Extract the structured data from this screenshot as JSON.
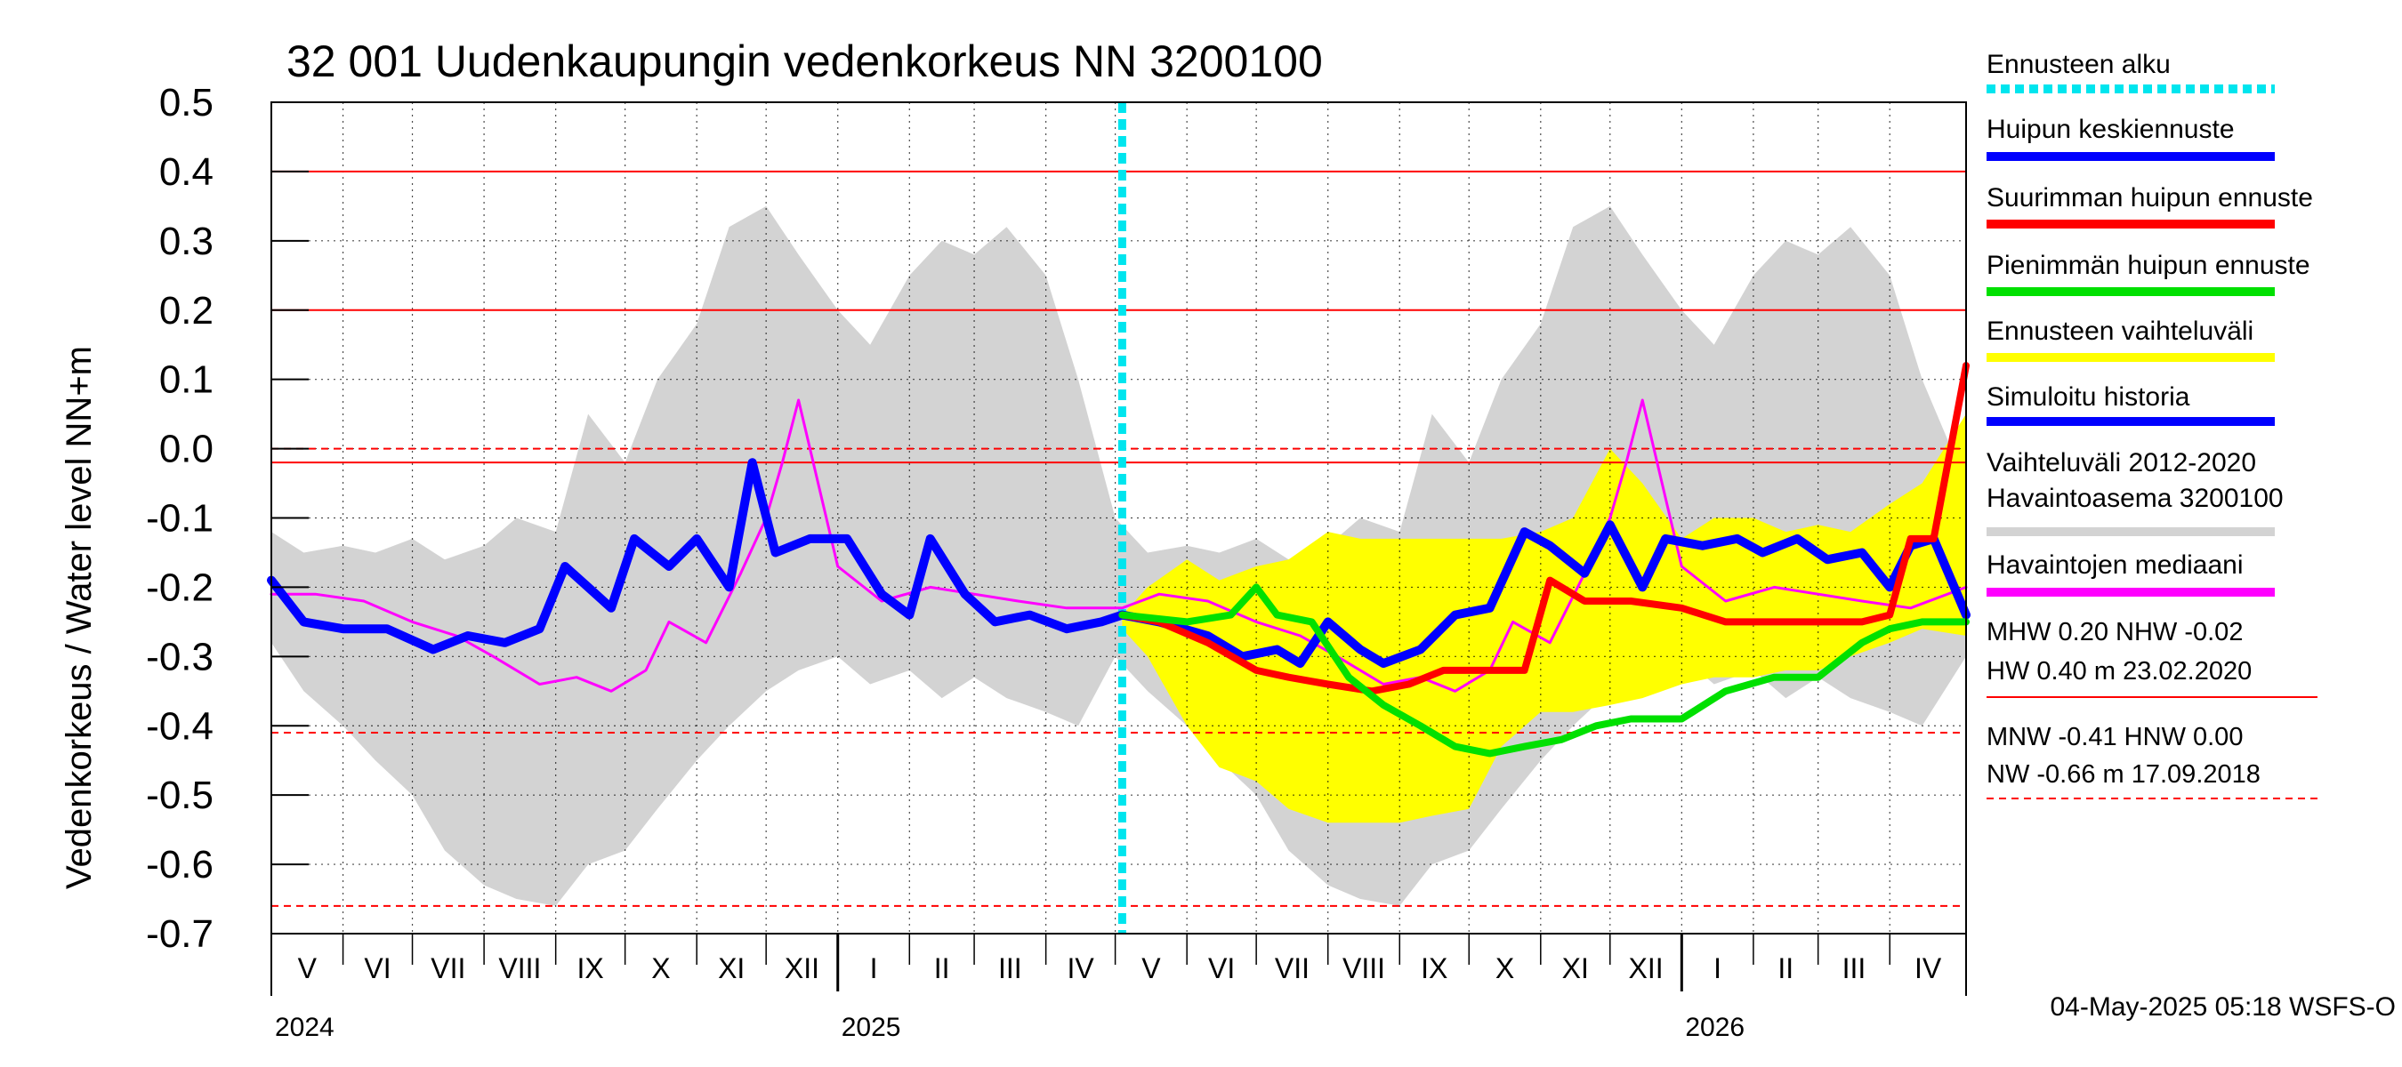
{
  "chart_data": {
    "type": "line",
    "title": "32 001 Uudenkaupungin vedenkorkeus NN 3200100",
    "ylabel": "Vedenkorkeus / Water level   NN+m",
    "ylim": [
      -0.7,
      0.5
    ],
    "y_ticks": [
      "0.5",
      "0.4",
      "0.3",
      "0.2",
      "0.1",
      "0.0",
      "-0.1",
      "-0.2",
      "-0.3",
      "-0.4",
      "-0.5",
      "-0.6",
      "-0.7"
    ],
    "x_range": [
      "2024-05-01",
      "2026-05-04"
    ],
    "forecast_start": "2025-05-04",
    "months": [
      {
        "label": "V",
        "start": "2024-05-01"
      },
      {
        "label": "VI",
        "start": "2024-06-01"
      },
      {
        "label": "VII",
        "start": "2024-07-01"
      },
      {
        "label": "VIII",
        "start": "2024-08-01"
      },
      {
        "label": "IX",
        "start": "2024-09-01"
      },
      {
        "label": "X",
        "start": "2024-10-01"
      },
      {
        "label": "XI",
        "start": "2024-11-01"
      },
      {
        "label": "XII",
        "start": "2024-12-01"
      },
      {
        "label": "I",
        "start": "2025-01-01"
      },
      {
        "label": "II",
        "start": "2025-02-01"
      },
      {
        "label": "III",
        "start": "2025-03-01"
      },
      {
        "label": "IV",
        "start": "2025-04-01"
      },
      {
        "label": "V",
        "start": "2025-05-01"
      },
      {
        "label": "VI",
        "start": "2025-06-01"
      },
      {
        "label": "VII",
        "start": "2025-07-01"
      },
      {
        "label": "VIII",
        "start": "2025-08-01"
      },
      {
        "label": "IX",
        "start": "2025-09-01"
      },
      {
        "label": "X",
        "start": "2025-10-01"
      },
      {
        "label": "XI",
        "start": "2025-11-01"
      },
      {
        "label": "XII",
        "start": "2025-12-01"
      },
      {
        "label": "I",
        "start": "2026-01-01"
      },
      {
        "label": "II",
        "start": "2026-02-01"
      },
      {
        "label": "III",
        "start": "2026-03-01"
      },
      {
        "label": "IV",
        "start": "2026-04-01"
      }
    ],
    "years": [
      {
        "label": "2024",
        "date": "2024-05-01"
      },
      {
        "label": "2025",
        "date": "2025-01-01"
      },
      {
        "label": "2026",
        "date": "2026-01-01"
      }
    ],
    "reference_lines": [
      {
        "y": 0.4,
        "style": "solid",
        "color": "#ff0000"
      },
      {
        "y": 0.2,
        "style": "solid",
        "color": "#ff0000"
      },
      {
        "y": 0.0,
        "style": "dashed",
        "color": "#ff0000"
      },
      {
        "y": -0.02,
        "style": "solid",
        "color": "#ff0000"
      },
      {
        "y": -0.41,
        "style": "dashed",
        "color": "#ff0000"
      },
      {
        "y": -0.66,
        "style": "dashed",
        "color": "#ff0000"
      }
    ],
    "legend": [
      {
        "label": "Ennusteen alku",
        "color": "#00e5ee",
        "style": "dotted"
      },
      {
        "label": "Huipun keskiennuste",
        "color": "#0000ff",
        "style": "solid"
      },
      {
        "label": "Suurimman huipun ennuste",
        "color": "#ff0000",
        "style": "solid"
      },
      {
        "label": "Pienimmän huipun ennuste",
        "color": "#00e000",
        "style": "solid"
      },
      {
        "label": "Ennusteen vaihteluväli",
        "color": "#ffff00",
        "style": "solid"
      },
      {
        "label": "Simuloitu historia",
        "color": "#0000ff",
        "style": "solid"
      },
      {
        "label": "Vaihteluväli 2012-2020\n Havaintoasema 3200100",
        "color": "#d3d3d3",
        "style": "solid"
      },
      {
        "label": "Havaintojen mediaani",
        "color": "#ff00ff",
        "style": "solid"
      }
    ],
    "stats": {
      "line1": "MHW   0.20 NHW  -0.02",
      "line2": "HW   0.40 m 23.02.2020",
      "line3": "MNW  -0.41 HNW   0.00",
      "line4": "NW  -0.66 m 17.09.2018"
    },
    "footer": "04-May-2025 05:18 WSFS-O",
    "series": [
      {
        "role": "historical_range",
        "color": "#d3d3d3",
        "x": [
          "2024-05-01",
          "2024-05-15",
          "2024-06-01",
          "2024-06-15",
          "2024-07-01",
          "2024-07-15",
          "2024-08-01",
          "2024-08-15",
          "2024-09-01",
          "2024-09-15",
          "2024-10-01",
          "2024-10-15",
          "2024-11-01",
          "2024-11-15",
          "2024-12-01",
          "2024-12-15",
          "2025-01-01",
          "2025-01-15",
          "2025-02-01",
          "2025-02-15",
          "2025-03-01",
          "2025-03-15",
          "2025-04-01",
          "2025-04-15",
          "2025-05-01",
          "2025-05-15",
          "2025-06-01",
          "2025-06-15",
          "2025-07-01",
          "2025-07-15",
          "2025-08-01",
          "2025-08-15",
          "2025-09-01",
          "2025-09-15",
          "2025-10-01",
          "2025-10-15",
          "2025-11-01",
          "2025-11-15",
          "2025-12-01",
          "2025-12-15",
          "2026-01-01",
          "2026-01-15",
          "2026-02-01",
          "2026-02-15",
          "2026-03-01",
          "2026-03-15",
          "2026-04-01",
          "2026-04-15",
          "2026-05-04"
        ],
        "upper": [
          -0.12,
          -0.15,
          -0.14,
          -0.15,
          -0.13,
          -0.16,
          -0.14,
          -0.1,
          -0.12,
          0.05,
          -0.02,
          0.1,
          0.18,
          0.32,
          0.35,
          0.28,
          0.2,
          0.15,
          0.25,
          0.3,
          0.28,
          0.32,
          0.25,
          0.1,
          -0.1,
          -0.15,
          -0.14,
          -0.15,
          -0.13,
          -0.16,
          -0.14,
          -0.1,
          -0.12,
          0.05,
          -0.02,
          0.1,
          0.18,
          0.32,
          0.35,
          0.28,
          0.2,
          0.15,
          0.25,
          0.3,
          0.28,
          0.32,
          0.25,
          0.1,
          -0.05
        ],
        "lower": [
          -0.28,
          -0.35,
          -0.4,
          -0.45,
          -0.5,
          -0.58,
          -0.63,
          -0.65,
          -0.66,
          -0.6,
          -0.58,
          -0.52,
          -0.45,
          -0.4,
          -0.35,
          -0.32,
          -0.3,
          -0.34,
          -0.32,
          -0.36,
          -0.33,
          -0.36,
          -0.38,
          -0.4,
          -0.3,
          -0.35,
          -0.4,
          -0.45,
          -0.5,
          -0.58,
          -0.63,
          -0.65,
          -0.66,
          -0.6,
          -0.58,
          -0.52,
          -0.45,
          -0.4,
          -0.35,
          -0.32,
          -0.3,
          -0.34,
          -0.32,
          -0.36,
          -0.33,
          -0.36,
          -0.38,
          -0.4,
          -0.3
        ]
      },
      {
        "role": "forecast_range",
        "color": "#ffff00",
        "x": [
          "2025-05-04",
          "2025-05-15",
          "2025-06-01",
          "2025-06-15",
          "2025-07-01",
          "2025-07-15",
          "2025-08-01",
          "2025-08-15",
          "2025-09-01",
          "2025-09-15",
          "2025-10-01",
          "2025-10-15",
          "2025-11-01",
          "2025-11-15",
          "2025-12-01",
          "2025-12-15",
          "2026-01-01",
          "2026-01-15",
          "2026-02-01",
          "2026-02-15",
          "2026-03-01",
          "2026-03-15",
          "2026-04-01",
          "2026-04-15",
          "2026-05-04"
        ],
        "upper": [
          -0.24,
          -0.2,
          -0.16,
          -0.19,
          -0.17,
          -0.16,
          -0.12,
          -0.13,
          -0.13,
          -0.13,
          -0.13,
          -0.13,
          -0.12,
          -0.1,
          0.0,
          -0.05,
          -0.13,
          -0.1,
          -0.1,
          -0.12,
          -0.11,
          -0.12,
          -0.08,
          -0.05,
          0.05
        ],
        "lower": [
          -0.26,
          -0.3,
          -0.4,
          -0.46,
          -0.48,
          -0.52,
          -0.54,
          -0.54,
          -0.54,
          -0.53,
          -0.52,
          -0.43,
          -0.38,
          -0.38,
          -0.37,
          -0.36,
          -0.34,
          -0.33,
          -0.33,
          -0.32,
          -0.32,
          -0.3,
          -0.28,
          -0.26,
          -0.27
        ]
      },
      {
        "name": "Havaintojen mediaani",
        "color": "#ff00ff",
        "width": 3,
        "x": [
          "2024-05-01",
          "2024-05-20",
          "2024-06-10",
          "2024-07-01",
          "2024-07-20",
          "2024-08-05",
          "2024-08-25",
          "2024-09-10",
          "2024-09-25",
          "2024-10-10",
          "2024-10-20",
          "2024-11-05",
          "2024-11-20",
          "2024-12-01",
          "2024-12-08",
          "2024-12-15",
          "2025-01-01",
          "2025-01-20",
          "2025-02-10",
          "2025-03-01",
          "2025-03-20",
          "2025-04-10",
          "2025-05-04",
          "2025-05-20",
          "2025-06-10",
          "2025-07-01",
          "2025-07-20",
          "2025-08-05",
          "2025-08-25",
          "2025-09-10",
          "2025-09-25",
          "2025-10-10",
          "2025-10-20",
          "2025-11-05",
          "2025-11-20",
          "2025-12-01",
          "2025-12-08",
          "2025-12-15",
          "2026-01-01",
          "2026-01-20",
          "2026-02-10",
          "2026-03-01",
          "2026-03-20",
          "2026-04-10",
          "2026-05-04"
        ],
        "values": [
          -0.21,
          -0.21,
          -0.22,
          -0.25,
          -0.27,
          -0.3,
          -0.34,
          -0.33,
          -0.35,
          -0.32,
          -0.25,
          -0.28,
          -0.18,
          -0.1,
          -0.02,
          0.07,
          -0.17,
          -0.22,
          -0.2,
          -0.21,
          -0.22,
          -0.23,
          -0.23,
          -0.21,
          -0.22,
          -0.25,
          -0.27,
          -0.3,
          -0.34,
          -0.33,
          -0.35,
          -0.32,
          -0.25,
          -0.28,
          -0.18,
          -0.1,
          -0.02,
          0.07,
          -0.17,
          -0.22,
          -0.2,
          -0.21,
          -0.22,
          -0.23,
          -0.2
        ]
      },
      {
        "name": "Simuloitu historia",
        "color": "#0000ff",
        "width": 10,
        "x": [
          "2024-05-01",
          "2024-05-15",
          "2024-06-01",
          "2024-06-20",
          "2024-07-10",
          "2024-07-25",
          "2024-08-10",
          "2024-08-25",
          "2024-09-05",
          "2024-09-15",
          "2024-09-25",
          "2024-10-05",
          "2024-10-20",
          "2024-11-01",
          "2024-11-15",
          "2024-11-25",
          "2024-12-05",
          "2024-12-20",
          "2025-01-05",
          "2025-01-20",
          "2025-02-01",
          "2025-02-10",
          "2025-02-25",
          "2025-03-10",
          "2025-03-25",
          "2025-04-10",
          "2025-04-25",
          "2025-05-04"
        ],
        "values": [
          -0.19,
          -0.25,
          -0.26,
          -0.26,
          -0.29,
          -0.27,
          -0.28,
          -0.26,
          -0.17,
          -0.2,
          -0.23,
          -0.13,
          -0.17,
          -0.13,
          -0.2,
          -0.02,
          -0.15,
          -0.13,
          -0.13,
          -0.21,
          -0.24,
          -0.13,
          -0.21,
          -0.25,
          -0.24,
          -0.26,
          -0.25,
          -0.24
        ]
      },
      {
        "name": "Huipun keskiennuste",
        "color": "#0000ff",
        "width": 10,
        "x": [
          "2025-05-04",
          "2025-05-20",
          "2025-06-10",
          "2025-06-25",
          "2025-07-10",
          "2025-07-20",
          "2025-08-01",
          "2025-08-15",
          "2025-08-25",
          "2025-09-10",
          "2025-09-25",
          "2025-10-10",
          "2025-10-25",
          "2025-11-05",
          "2025-11-20",
          "2025-12-01",
          "2025-12-15",
          "2025-12-25",
          "2026-01-10",
          "2026-01-25",
          "2026-02-05",
          "2026-02-20",
          "2026-03-05",
          "2026-03-20",
          "2026-04-01",
          "2026-04-10",
          "2026-04-20",
          "2026-05-04"
        ],
        "values": [
          -0.24,
          -0.25,
          -0.27,
          -0.3,
          -0.29,
          -0.31,
          -0.25,
          -0.29,
          -0.31,
          -0.29,
          -0.24,
          -0.23,
          -0.12,
          -0.14,
          -0.18,
          -0.11,
          -0.2,
          -0.13,
          -0.14,
          -0.13,
          -0.15,
          -0.13,
          -0.16,
          -0.15,
          -0.2,
          -0.14,
          -0.13,
          -0.24
        ]
      },
      {
        "name": "Suurimman huipun ennuste",
        "color": "#ff0000",
        "width": 8,
        "x": [
          "2025-05-04",
          "2025-05-20",
          "2025-06-10",
          "2025-07-01",
          "2025-07-15",
          "2025-08-01",
          "2025-08-20",
          "2025-09-05",
          "2025-09-20",
          "2025-10-05",
          "2025-10-25",
          "2025-11-05",
          "2025-11-20",
          "2025-12-10",
          "2026-01-01",
          "2026-01-20",
          "2026-02-10",
          "2026-03-01",
          "2026-03-20",
          "2026-04-01",
          "2026-04-10",
          "2026-04-20",
          "2026-05-04"
        ],
        "values": [
          -0.24,
          -0.25,
          -0.28,
          -0.32,
          -0.33,
          -0.34,
          -0.35,
          -0.34,
          -0.32,
          -0.32,
          -0.32,
          -0.19,
          -0.22,
          -0.22,
          -0.23,
          -0.25,
          -0.25,
          -0.25,
          -0.25,
          -0.24,
          -0.13,
          -0.13,
          0.12
        ]
      },
      {
        "name": "Pienimmän huipun ennuste",
        "color": "#00e000",
        "width": 8,
        "x": [
          "2025-05-04",
          "2025-06-01",
          "2025-06-20",
          "2025-07-01",
          "2025-07-10",
          "2025-07-25",
          "2025-08-10",
          "2025-08-25",
          "2025-09-10",
          "2025-09-25",
          "2025-10-10",
          "2025-10-25",
          "2025-11-10",
          "2025-11-25",
          "2025-12-10",
          "2026-01-01",
          "2026-01-20",
          "2026-02-10",
          "2026-03-01",
          "2026-03-20",
          "2026-04-01",
          "2026-04-15",
          "2026-05-04"
        ],
        "values": [
          -0.24,
          -0.25,
          -0.24,
          -0.2,
          -0.24,
          -0.25,
          -0.33,
          -0.37,
          -0.4,
          -0.43,
          -0.44,
          -0.43,
          -0.42,
          -0.4,
          -0.39,
          -0.39,
          -0.35,
          -0.33,
          -0.33,
          -0.28,
          -0.26,
          -0.25,
          -0.25
        ]
      }
    ]
  }
}
